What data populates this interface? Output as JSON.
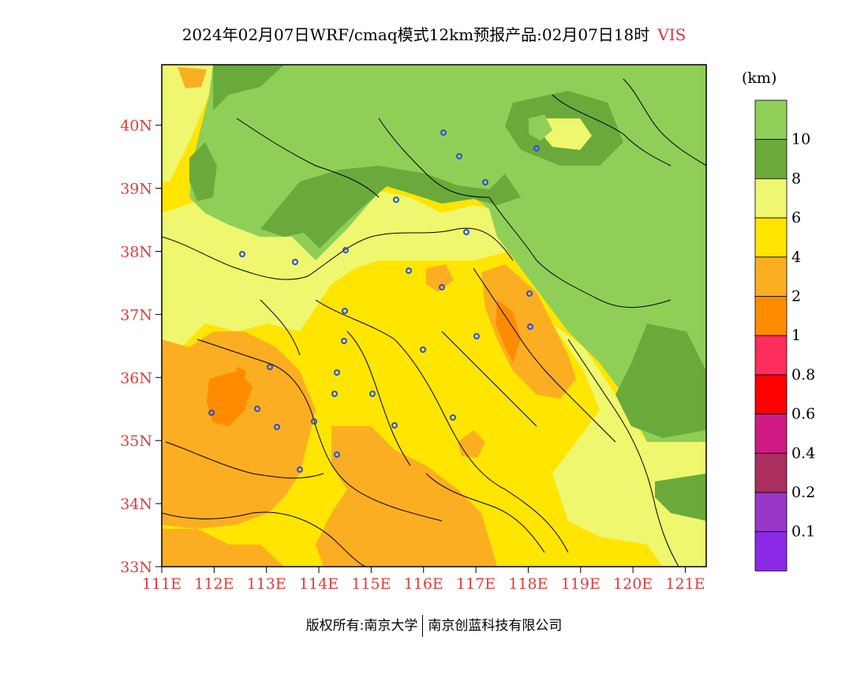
{
  "title": {
    "text": "2024年02月07日WRF/cmaq模式12km预报产品:02月07日18时",
    "variable": "VIS",
    "variable_color": "#e0343c"
  },
  "map": {
    "lon_labels": [
      "111E",
      "112E",
      "113E",
      "114E",
      "115E",
      "116E",
      "117E",
      "118E",
      "119E",
      "120E",
      "121E"
    ],
    "lat_labels": [
      "33N",
      "34N",
      "35N",
      "36N",
      "37N",
      "38N",
      "39N",
      "40N"
    ],
    "lon_range": [
      111,
      121.4
    ],
    "lat_range": [
      33,
      40.96
    ],
    "tick_color": "#e33b3b",
    "station_color": "#2a4fd8"
  },
  "legend": {
    "unit": "(km)",
    "levels": [
      {
        "label": "",
        "color": "#8fcf58"
      },
      {
        "label": "10",
        "color": "#6aaa3b"
      },
      {
        "label": "8",
        "color": "#eef76e"
      },
      {
        "label": "6",
        "color": "#ffe500"
      },
      {
        "label": "4",
        "color": "#fcae22"
      },
      {
        "label": "2",
        "color": "#ff8c00"
      },
      {
        "label": "1",
        "color": "#ff2d5b"
      },
      {
        "label": "0.8",
        "color": "#ff0000"
      },
      {
        "label": "0.6",
        "color": "#cf1a83"
      },
      {
        "label": "0.4",
        "color": "#aa2e5e"
      },
      {
        "label": "0.2",
        "color": "#9a36c9"
      },
      {
        "label": "0.1",
        "color": "#8b2ae6"
      }
    ]
  },
  "footer": {
    "left": "版权所有:南京大学",
    "right": "南京创蓝科技有限公司"
  }
}
